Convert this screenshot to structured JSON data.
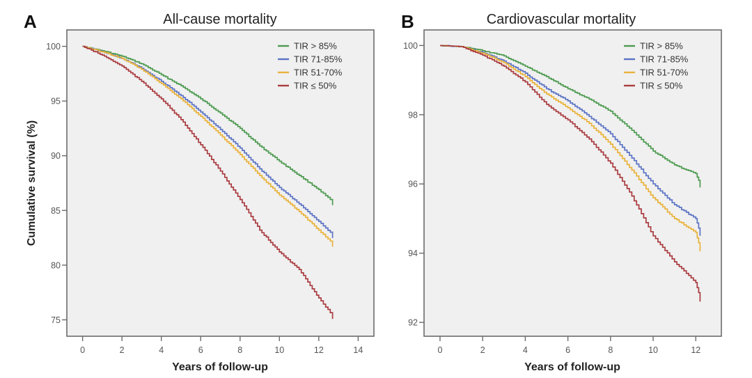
{
  "figure": {
    "ylabel": "Cumulative survival (%)",
    "legend_position": "top-right"
  },
  "legend": [
    {
      "label": "TIR > 85%",
      "color": "#4c9a4f"
    },
    {
      "label": "TIR 71-85%",
      "color": "#5b73c4"
    },
    {
      "label": "TIR 51-70%",
      "color": "#e9b23a"
    },
    {
      "label": "TIR ≤ 50%",
      "color": "#a93b3f"
    }
  ],
  "chart_data": [
    {
      "type": "line",
      "panel": "A",
      "title": "All-cause mortality",
      "xlabel": "Years of follow-up",
      "ylabel": "Cumulative survival (%)",
      "xlim": [
        -0.8,
        14.8
      ],
      "ylim": [
        73.5,
        101.5
      ],
      "xticks": [
        0,
        2,
        4,
        6,
        8,
        10,
        12,
        14
      ],
      "yticks": [
        75,
        80,
        85,
        90,
        95,
        100
      ],
      "grid": false,
      "legend": "top-right",
      "x": [
        0,
        1,
        2,
        3,
        4,
        5,
        6,
        7,
        8,
        9,
        10,
        11,
        12,
        12.7
      ],
      "series": [
        {
          "name": "TIR > 85%",
          "color": "#4c9a4f",
          "values": [
            100,
            99.6,
            99.1,
            98.4,
            97.4,
            96.4,
            95.2,
            93.9,
            92.5,
            90.9,
            89.5,
            88.2,
            86.9,
            85.8
          ]
        },
        {
          "name": "TIR 71-85%",
          "color": "#5b73c4",
          "values": [
            100,
            99.5,
            98.9,
            98.0,
            96.8,
            95.5,
            94.0,
            92.4,
            90.7,
            88.8,
            87.1,
            85.6,
            84.0,
            82.8
          ]
        },
        {
          "name": "TIR 51-70%",
          "color": "#e9b23a",
          "values": [
            100,
            99.5,
            98.9,
            97.9,
            96.6,
            95.2,
            93.6,
            91.9,
            90.1,
            88.2,
            86.4,
            84.9,
            83.2,
            82.0
          ]
        },
        {
          "name": "TIR ≤ 50%",
          "color": "#a93b3f",
          "values": [
            100,
            99.2,
            98.2,
            96.8,
            95.2,
            93.3,
            91.0,
            88.6,
            86.0,
            83.2,
            81.2,
            79.6,
            77.0,
            75.4
          ]
        }
      ]
    },
    {
      "type": "line",
      "panel": "B",
      "title": "Cardiovascular mortality",
      "xlabel": "Years of follow-up",
      "ylabel": "",
      "xlim": [
        -0.75,
        13.2
      ],
      "ylim": [
        91.6,
        100.45
      ],
      "xticks": [
        0,
        2,
        4,
        6,
        8,
        10,
        12
      ],
      "yticks": [
        92,
        94,
        96,
        98,
        100
      ],
      "grid": false,
      "legend": "top-right",
      "x": [
        0,
        1,
        2,
        3,
        4,
        5,
        6,
        7,
        8,
        9,
        10,
        11,
        12,
        12.2
      ],
      "series": [
        {
          "name": "TIR > 85%",
          "color": "#4c9a4f",
          "values": [
            100,
            99.97,
            99.85,
            99.7,
            99.4,
            99.1,
            98.75,
            98.45,
            98.1,
            97.55,
            96.95,
            96.55,
            96.3,
            96.0
          ]
        },
        {
          "name": "TIR 71-85%",
          "color": "#5b73c4",
          "values": [
            100,
            99.97,
            99.8,
            99.55,
            99.2,
            98.75,
            98.4,
            97.95,
            97.45,
            96.75,
            96.0,
            95.4,
            95.0,
            94.6
          ]
        },
        {
          "name": "TIR 51-70%",
          "color": "#e9b23a",
          "values": [
            100,
            99.97,
            99.78,
            99.5,
            99.1,
            98.6,
            98.2,
            97.75,
            97.15,
            96.4,
            95.6,
            95.0,
            94.6,
            94.15
          ]
        },
        {
          "name": "TIR ≤ 50%",
          "color": "#a93b3f",
          "values": [
            100,
            99.97,
            99.72,
            99.4,
            98.95,
            98.3,
            97.85,
            97.3,
            96.6,
            95.65,
            94.5,
            93.75,
            93.15,
            92.7
          ]
        }
      ]
    }
  ]
}
